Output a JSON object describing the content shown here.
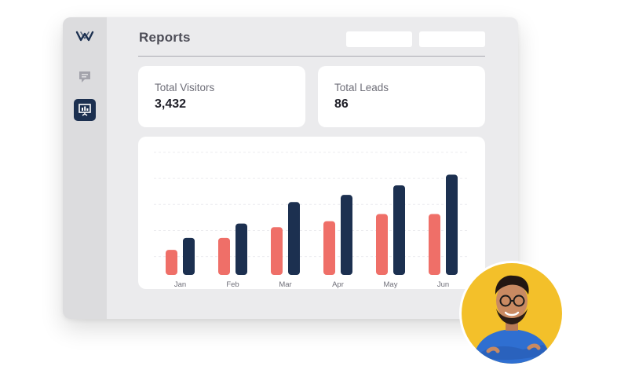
{
  "app": {
    "title": "Reports",
    "sidebar": {
      "items": [
        {
          "icon": "logo-icon"
        },
        {
          "icon": "chat-icon"
        },
        {
          "icon": "presentation-chart-icon",
          "active": true
        }
      ]
    }
  },
  "stats": [
    {
      "label": "Total Visitors",
      "value": "3,432"
    },
    {
      "label": "Total Leads",
      "value": "86"
    }
  ],
  "colors": {
    "accent": "#1c3050",
    "secondary": "#ef6f68",
    "avatar_bg": "#f3c02a"
  },
  "chart_data": {
    "type": "bar",
    "categories": [
      "Jan",
      "Feb",
      "Mar",
      "Apr",
      "May",
      "Jun"
    ],
    "series": [
      {
        "values": [
          21,
          31,
          40,
          45,
          51,
          51
        ],
        "color": "#ef6f68"
      },
      {
        "values": [
          31,
          43,
          61,
          67,
          75,
          84
        ],
        "color": "#1c3050"
      }
    ],
    "ylim": [
      0,
      100
    ],
    "grid": true
  }
}
